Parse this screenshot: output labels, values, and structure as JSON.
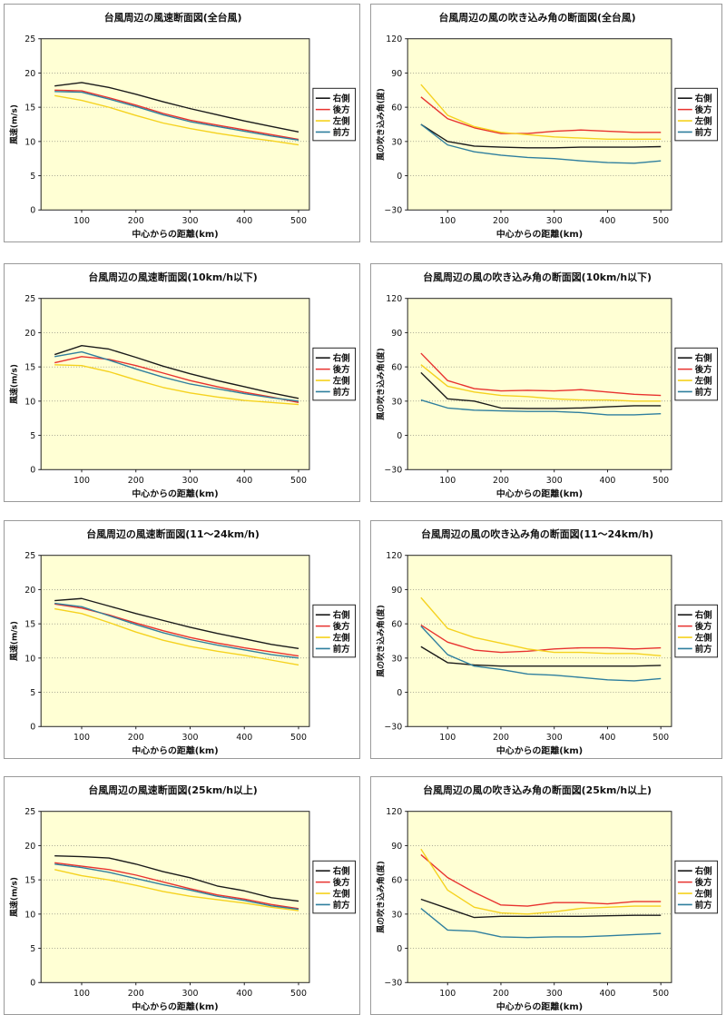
{
  "chart_data": [
    {
      "type": "line",
      "title": "台風周辺の風速断面図(全台風)",
      "xlabel": "中心からの距離(km)",
      "ylabel": "風速(m/s)",
      "xlim": [
        25,
        520
      ],
      "ylim": [
        0,
        25
      ],
      "yticks": [
        0,
        5,
        10,
        15,
        20,
        25
      ],
      "ytick_labels": [
        "0",
        "5",
        "10",
        "15",
        "20",
        "25"
      ],
      "xticks": [
        100,
        200,
        300,
        400,
        500
      ],
      "xtick_labels": [
        "100",
        "200",
        "300",
        "400",
        "500"
      ],
      "x": [
        50,
        100,
        150,
        200,
        250,
        300,
        350,
        400,
        450,
        500
      ],
      "series": [
        {
          "name": "右側",
          "color": "#1a1a1a",
          "values": [
            18.1,
            18.6,
            17.9,
            16.9,
            15.8,
            14.8,
            13.9,
            13.0,
            12.2,
            11.4
          ]
        },
        {
          "name": "後方",
          "color": "#e8322f",
          "values": [
            17.5,
            17.4,
            16.4,
            15.3,
            14.1,
            13.1,
            12.4,
            11.7,
            11.0,
            10.3
          ]
        },
        {
          "name": "左側",
          "color": "#f5d21f",
          "values": [
            16.7,
            16.0,
            15.0,
            13.8,
            12.7,
            11.9,
            11.2,
            10.6,
            10.1,
            9.5
          ]
        },
        {
          "name": "前方",
          "color": "#2f7f9e",
          "values": [
            17.3,
            17.2,
            16.2,
            15.1,
            13.9,
            12.9,
            12.2,
            11.5,
            10.8,
            10.2
          ]
        }
      ]
    },
    {
      "type": "line",
      "title": "台風周辺の風の吹き込み角の断面図(全台風)",
      "xlabel": "中心からの距離(km)",
      "ylabel": "風の吹き込み角(度)",
      "xlim": [
        25,
        520
      ],
      "ylim": [
        -30,
        120
      ],
      "yticks": [
        -30,
        0,
        30,
        60,
        90,
        120
      ],
      "ytick_labels": [
        "−30",
        "0",
        "30",
        "60",
        "90",
        "120"
      ],
      "xticks": [
        100,
        200,
        300,
        400,
        500
      ],
      "xtick_labels": [
        "100",
        "200",
        "300",
        "400",
        "500"
      ],
      "x": [
        50,
        100,
        150,
        200,
        250,
        300,
        350,
        400,
        450,
        500
      ],
      "series": [
        {
          "name": "右側",
          "color": "#1a1a1a",
          "values": [
            45,
            30,
            26,
            25,
            24.5,
            24.5,
            25,
            25,
            25,
            25.5
          ]
        },
        {
          "name": "後方",
          "color": "#e8322f",
          "values": [
            69,
            50,
            42,
            37,
            37,
            39,
            40,
            39,
            38,
            38
          ]
        },
        {
          "name": "左側",
          "color": "#f5d21f",
          "values": [
            80,
            53,
            43,
            38,
            36,
            34,
            33,
            32,
            32,
            32
          ]
        },
        {
          "name": "前方",
          "color": "#2f7f9e",
          "values": [
            45,
            27,
            21,
            18,
            16,
            15,
            13,
            11.5,
            11,
            13
          ]
        }
      ]
    },
    {
      "type": "line",
      "title": "台風周辺の風速断面図(10km/h以下)",
      "xlabel": "中心からの距離(km)",
      "ylabel": "風速(m/s)",
      "xlim": [
        25,
        520
      ],
      "ylim": [
        0,
        25
      ],
      "yticks": [
        0,
        5,
        10,
        15,
        20,
        25
      ],
      "ytick_labels": [
        "0",
        "5",
        "10",
        "15",
        "20",
        "25"
      ],
      "xticks": [
        100,
        200,
        300,
        400,
        500
      ],
      "xtick_labels": [
        "100",
        "200",
        "300",
        "400",
        "500"
      ],
      "x": [
        50,
        100,
        150,
        200,
        250,
        300,
        350,
        400,
        450,
        500
      ],
      "series": [
        {
          "name": "右側",
          "color": "#1a1a1a",
          "values": [
            16.8,
            18.1,
            17.6,
            16.4,
            15.1,
            14.0,
            13.0,
            12.1,
            11.2,
            10.4
          ]
        },
        {
          "name": "後方",
          "color": "#e8322f",
          "values": [
            15.6,
            16.5,
            16.1,
            15.2,
            14.1,
            13.0,
            12.1,
            11.3,
            10.6,
            9.8
          ]
        },
        {
          "name": "左側",
          "color": "#f5d21f",
          "values": [
            15.3,
            15.2,
            14.3,
            13.1,
            12.0,
            11.2,
            10.6,
            10.1,
            9.8,
            9.5
          ]
        },
        {
          "name": "前方",
          "color": "#2f7f9e",
          "values": [
            16.5,
            17.2,
            16.0,
            14.7,
            13.5,
            12.5,
            11.8,
            11.1,
            10.5,
            10.0
          ]
        }
      ]
    },
    {
      "type": "line",
      "title": "台風周辺の風の吹き込み角の断面図(10km/h以下)",
      "xlabel": "中心からの距離(km)",
      "ylabel": "風の吹き込み角(度)",
      "xlim": [
        25,
        520
      ],
      "ylim": [
        -30,
        120
      ],
      "yticks": [
        -30,
        0,
        30,
        60,
        90,
        120
      ],
      "ytick_labels": [
        "−30",
        "0",
        "30",
        "60",
        "90",
        "120"
      ],
      "xticks": [
        100,
        200,
        300,
        400,
        500
      ],
      "xtick_labels": [
        "100",
        "200",
        "300",
        "400",
        "500"
      ],
      "x": [
        50,
        100,
        150,
        200,
        250,
        300,
        350,
        400,
        450,
        500
      ],
      "series": [
        {
          "name": "右側",
          "color": "#1a1a1a",
          "values": [
            55,
            32,
            30,
            24,
            23.5,
            23.5,
            24,
            25,
            26,
            26
          ]
        },
        {
          "name": "後方",
          "color": "#e8322f",
          "values": [
            72,
            48,
            41,
            39,
            39.5,
            39,
            40,
            38,
            36,
            35
          ]
        },
        {
          "name": "左側",
          "color": "#f5d21f",
          "values": [
            62,
            43,
            38,
            35,
            34,
            32,
            31,
            31,
            30,
            30
          ]
        },
        {
          "name": "前方",
          "color": "#2f7f9e",
          "values": [
            31,
            24,
            22,
            21.5,
            21,
            21,
            20,
            18,
            18,
            19
          ]
        }
      ]
    },
    {
      "type": "line",
      "title": "台風周辺の風速断面図(11〜24km/h)",
      "xlabel": "中心からの距離(km)",
      "ylabel": "風速(m/s)",
      "xlim": [
        25,
        520
      ],
      "ylim": [
        0,
        25
      ],
      "yticks": [
        0,
        5,
        10,
        15,
        20,
        25
      ],
      "ytick_labels": [
        "0",
        "5",
        "10",
        "15",
        "20",
        "25"
      ],
      "xticks": [
        100,
        200,
        300,
        400,
        500
      ],
      "xtick_labels": [
        "100",
        "200",
        "300",
        "400",
        "500"
      ],
      "x": [
        50,
        100,
        150,
        200,
        250,
        300,
        350,
        400,
        450,
        500
      ],
      "series": [
        {
          "name": "右側",
          "color": "#1a1a1a",
          "values": [
            18.4,
            18.7,
            17.6,
            16.5,
            15.5,
            14.5,
            13.6,
            12.8,
            12.0,
            11.4
          ]
        },
        {
          "name": "後方",
          "color": "#e8322f",
          "values": [
            17.9,
            17.3,
            16.3,
            15.1,
            14.0,
            13.0,
            12.2,
            11.5,
            10.9,
            10.3
          ]
        },
        {
          "name": "左側",
          "color": "#f5d21f",
          "values": [
            17.2,
            16.5,
            15.2,
            13.8,
            12.6,
            11.7,
            11.0,
            10.4,
            9.7,
            9.0
          ]
        },
        {
          "name": "前方",
          "color": "#2f7f9e",
          "values": [
            18.0,
            17.5,
            16.2,
            14.9,
            13.7,
            12.7,
            11.9,
            11.2,
            10.5,
            10.0
          ]
        }
      ]
    },
    {
      "type": "line",
      "title": "台風周辺の風の吹き込み角の断面図(11〜24km/h)",
      "xlabel": "中心からの距離(km)",
      "ylabel": "風の吹き込み角(度)",
      "xlim": [
        25,
        520
      ],
      "ylim": [
        -30,
        120
      ],
      "yticks": [
        -30,
        0,
        30,
        60,
        90,
        120
      ],
      "ytick_labels": [
        "−30",
        "0",
        "30",
        "60",
        "90",
        "120"
      ],
      "xticks": [
        100,
        200,
        300,
        400,
        500
      ],
      "xtick_labels": [
        "100",
        "200",
        "300",
        "400",
        "500"
      ],
      "x": [
        50,
        100,
        150,
        200,
        250,
        300,
        350,
        400,
        450,
        500
      ],
      "series": [
        {
          "name": "右側",
          "color": "#1a1a1a",
          "values": [
            40,
            26,
            24,
            23,
            23,
            23,
            23,
            23,
            23,
            23.5
          ]
        },
        {
          "name": "後方",
          "color": "#e8322f",
          "values": [
            59,
            44,
            37,
            35,
            36,
            38,
            39,
            39,
            38,
            39
          ]
        },
        {
          "name": "左側",
          "color": "#f5d21f",
          "values": [
            83,
            56,
            48,
            43,
            38,
            35,
            35,
            34,
            34,
            32
          ]
        },
        {
          "name": "前方",
          "color": "#2f7f9e",
          "values": [
            58,
            33,
            23,
            20,
            16,
            15,
            13,
            11,
            10,
            12
          ]
        }
      ]
    },
    {
      "type": "line",
      "title": "台風周辺の風速断面図(25km/h以上)",
      "xlabel": "中心からの距離(km)",
      "ylabel": "風速(m/s)",
      "xlim": [
        25,
        520
      ],
      "ylim": [
        0,
        25
      ],
      "yticks": [
        0,
        5,
        10,
        15,
        20,
        25
      ],
      "ytick_labels": [
        "0",
        "5",
        "10",
        "15",
        "20",
        "25"
      ],
      "xticks": [
        100,
        200,
        300,
        400,
        500
      ],
      "xtick_labels": [
        "100",
        "200",
        "300",
        "400",
        "500"
      ],
      "x": [
        50,
        100,
        150,
        200,
        250,
        300,
        350,
        400,
        450,
        500
      ],
      "series": [
        {
          "name": "右側",
          "color": "#1a1a1a",
          "values": [
            18.5,
            18.4,
            18.2,
            17.3,
            16.2,
            15.3,
            14.1,
            13.4,
            12.4,
            11.9
          ]
        },
        {
          "name": "後方",
          "color": "#e8322f",
          "values": [
            17.5,
            17.0,
            16.5,
            15.7,
            14.7,
            13.7,
            12.8,
            12.2,
            11.4,
            10.8
          ]
        },
        {
          "name": "左側",
          "color": "#f5d21f",
          "values": [
            16.5,
            15.6,
            15.0,
            14.2,
            13.3,
            12.6,
            12.1,
            11.6,
            11.0,
            10.5
          ]
        },
        {
          "name": "前方",
          "color": "#2f7f9e",
          "values": [
            17.3,
            16.8,
            16.1,
            15.2,
            14.3,
            13.5,
            12.6,
            12.0,
            11.2,
            10.7
          ]
        }
      ]
    },
    {
      "type": "line",
      "title": "台風周辺の風の吹き込み角の断面図(25km/h以上)",
      "xlabel": "中心からの距離(km)",
      "ylabel": "風の吹き込み角(度)",
      "xlim": [
        25,
        520
      ],
      "ylim": [
        -30,
        120
      ],
      "yticks": [
        -30,
        0,
        30,
        60,
        90,
        120
      ],
      "ytick_labels": [
        "−30",
        "0",
        "30",
        "60",
        "90",
        "120"
      ],
      "xticks": [
        100,
        200,
        300,
        400,
        500
      ],
      "xtick_labels": [
        "100",
        "200",
        "300",
        "400",
        "500"
      ],
      "x": [
        50,
        100,
        150,
        200,
        250,
        300,
        350,
        400,
        450,
        500
      ],
      "series": [
        {
          "name": "右側",
          "color": "#1a1a1a",
          "values": [
            43,
            35,
            27,
            28,
            28,
            28,
            28,
            28.5,
            29,
            29
          ]
        },
        {
          "name": "後方",
          "color": "#e8322f",
          "values": [
            82,
            62,
            49,
            38,
            37,
            40,
            40,
            39,
            41,
            41
          ]
        },
        {
          "name": "左側",
          "color": "#f5d21f",
          "values": [
            87,
            51,
            36,
            31,
            30,
            32,
            35,
            36,
            37,
            37
          ]
        },
        {
          "name": "前方",
          "color": "#2f7f9e",
          "values": [
            35,
            16,
            15,
            10,
            9.5,
            10,
            10,
            11,
            12,
            13
          ]
        }
      ]
    }
  ]
}
